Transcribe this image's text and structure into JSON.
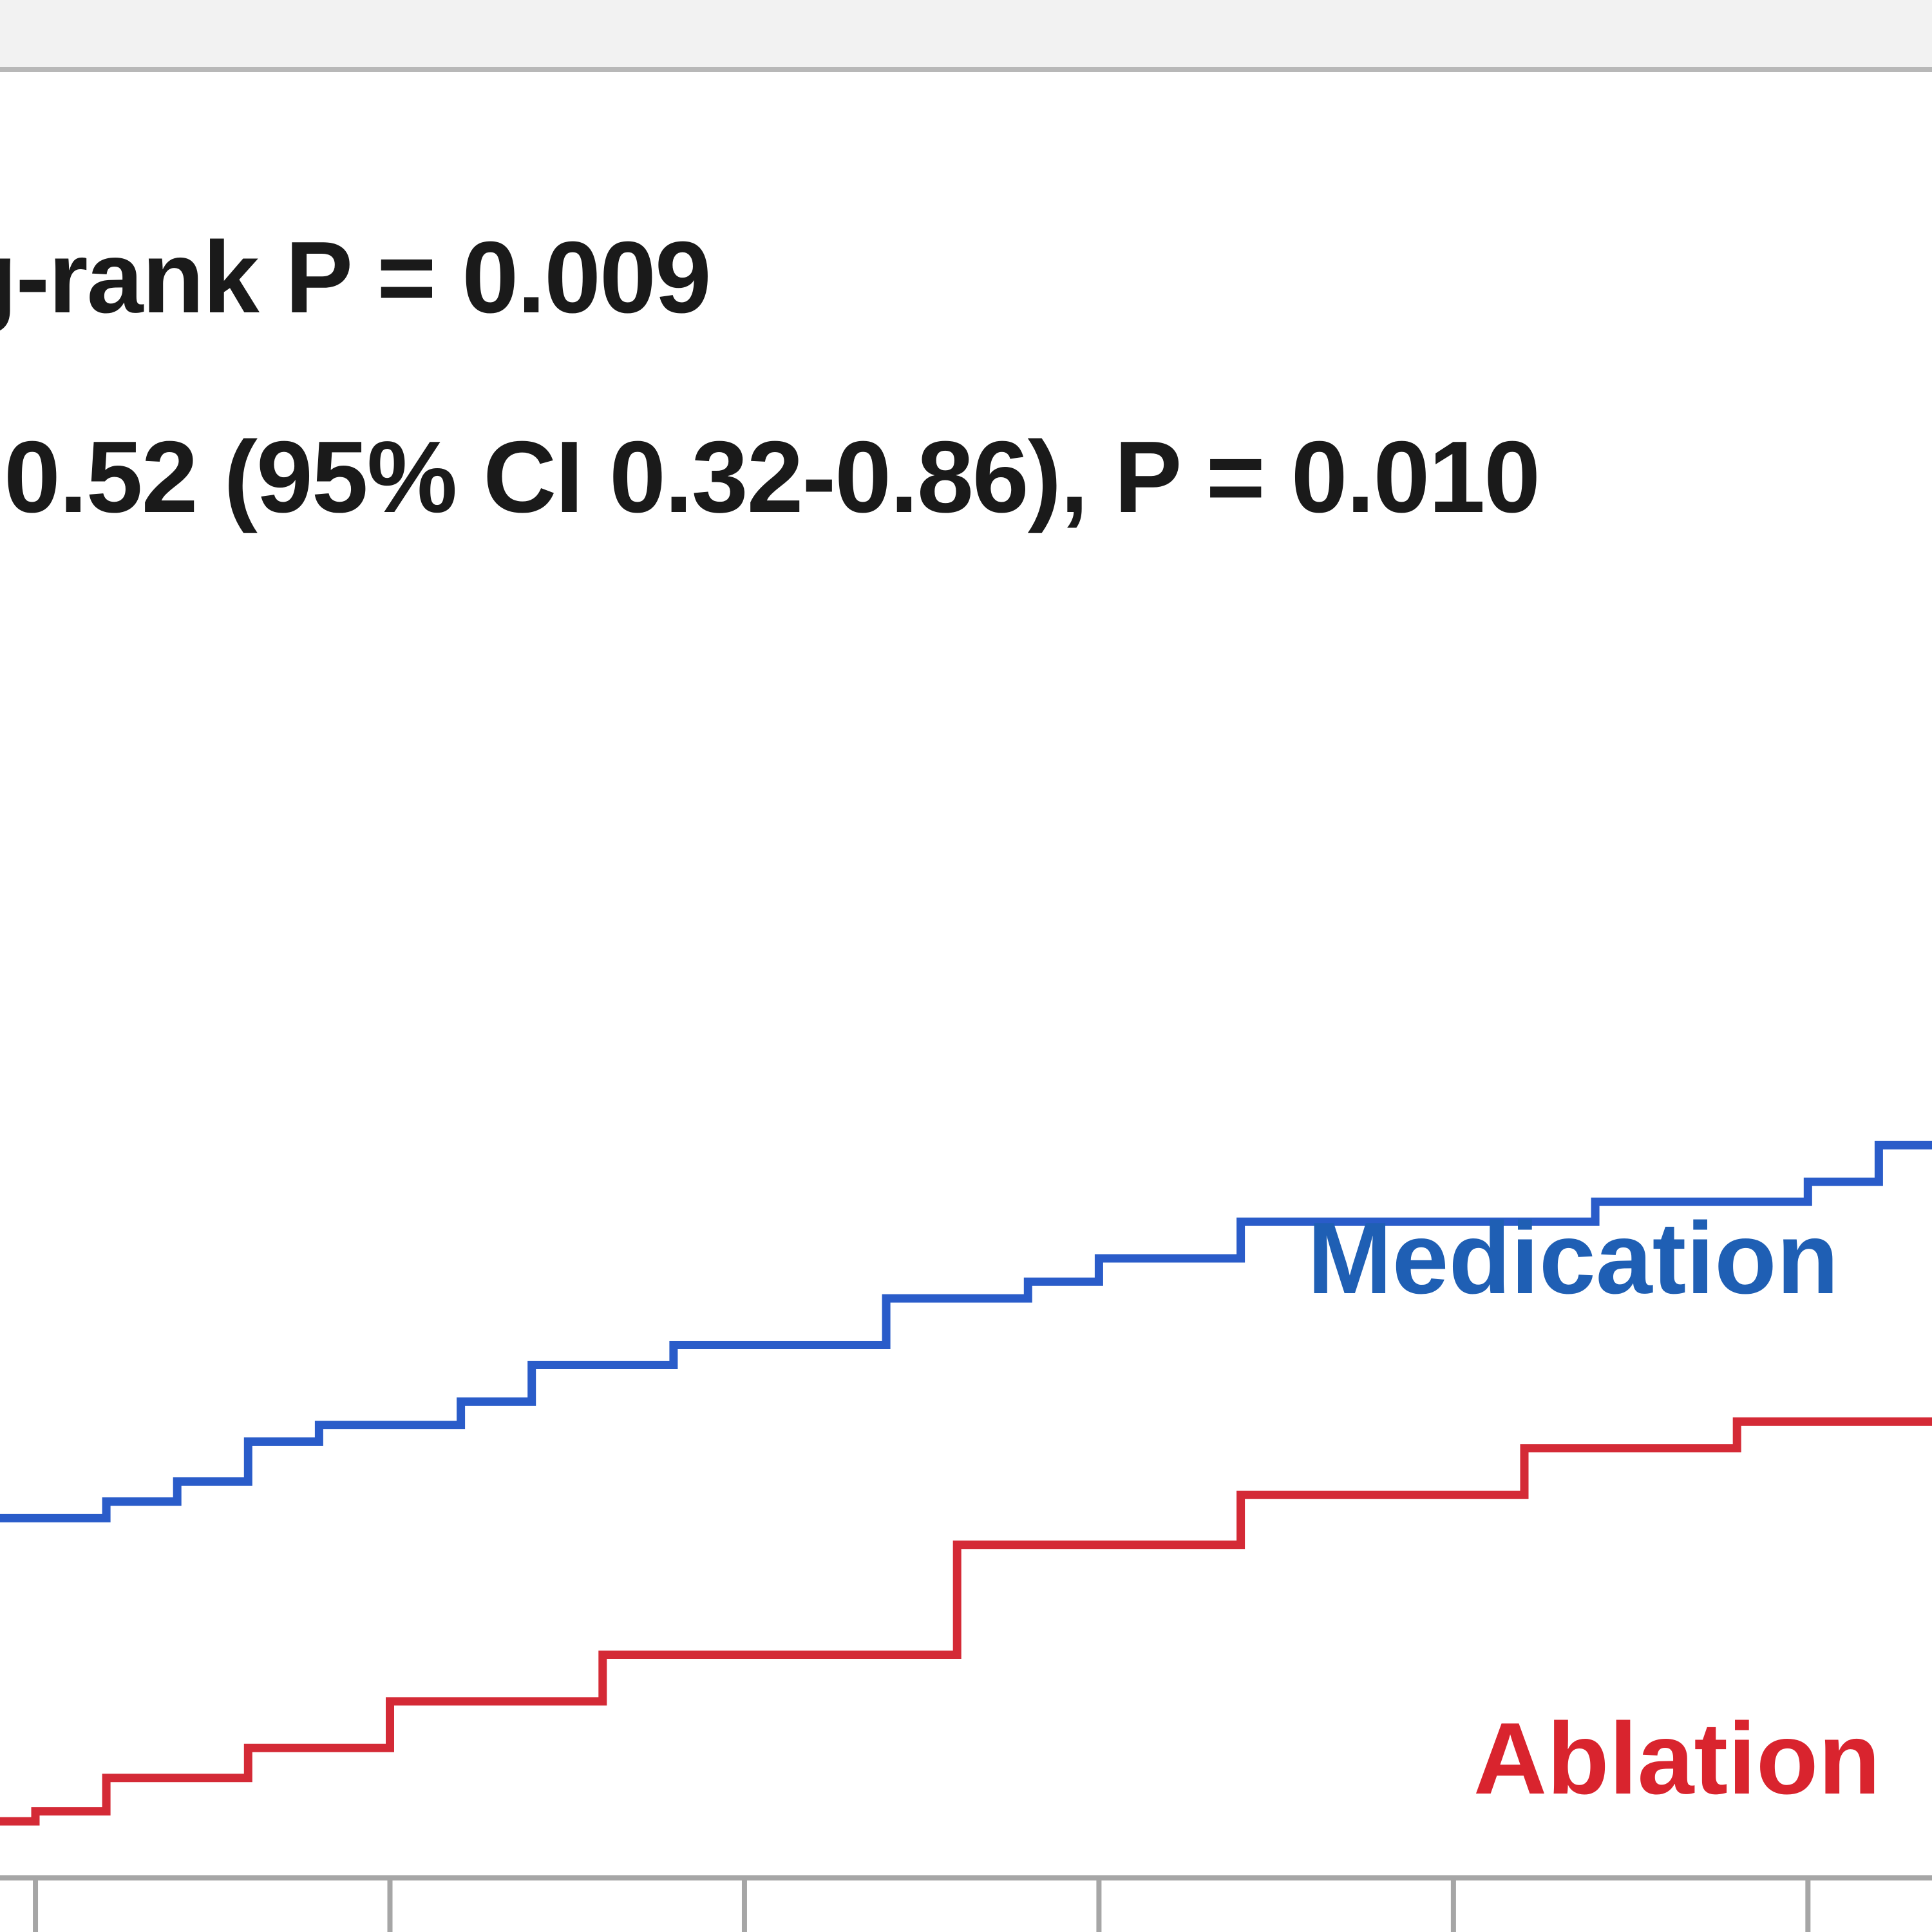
{
  "chart_data": {
    "type": "line",
    "step": true,
    "annotations": [
      "g-rank P = 0.009",
      "0.52 (95% CI 0.32-0.86), P = 0.010"
    ],
    "xlim": [
      0,
      5.45
    ],
    "ylim": [
      0,
      1
    ],
    "grid": false,
    "series": [
      {
        "name": "Medication",
        "color": "#2a5cc9",
        "label_color": "#1f5fb4",
        "points": [
          [
            0.0,
            0.216
          ],
          [
            0.3,
            0.216
          ],
          [
            0.3,
            0.226
          ],
          [
            0.5,
            0.226
          ],
          [
            0.5,
            0.238
          ],
          [
            0.7,
            0.238
          ],
          [
            0.7,
            0.262
          ],
          [
            0.9,
            0.262
          ],
          [
            0.9,
            0.272
          ],
          [
            1.3,
            0.272
          ],
          [
            1.3,
            0.286
          ],
          [
            1.5,
            0.286
          ],
          [
            1.5,
            0.308
          ],
          [
            1.9,
            0.308
          ],
          [
            1.9,
            0.32
          ],
          [
            2.5,
            0.32
          ],
          [
            2.5,
            0.348
          ],
          [
            2.9,
            0.348
          ],
          [
            2.9,
            0.358
          ],
          [
            3.1,
            0.358
          ],
          [
            3.1,
            0.372
          ],
          [
            3.5,
            0.372
          ],
          [
            3.5,
            0.394
          ],
          [
            4.5,
            0.394
          ],
          [
            4.5,
            0.406
          ],
          [
            5.1,
            0.406
          ],
          [
            5.1,
            0.418
          ],
          [
            5.3,
            0.418
          ],
          [
            5.3,
            0.44
          ],
          [
            5.45,
            0.44
          ]
        ]
      },
      {
        "name": "Ablation",
        "color": "#d42a36",
        "label_color": "#d9242e",
        "points": [
          [
            0.0,
            0.034
          ],
          [
            0.1,
            0.034
          ],
          [
            0.1,
            0.04
          ],
          [
            0.3,
            0.04
          ],
          [
            0.3,
            0.06
          ],
          [
            0.7,
            0.06
          ],
          [
            0.7,
            0.078
          ],
          [
            1.1,
            0.078
          ],
          [
            1.1,
            0.106
          ],
          [
            1.7,
            0.106
          ],
          [
            1.7,
            0.134
          ],
          [
            2.7,
            0.134
          ],
          [
            2.7,
            0.2
          ],
          [
            3.5,
            0.2
          ],
          [
            3.5,
            0.23
          ],
          [
            4.3,
            0.23
          ],
          [
            4.3,
            0.258
          ],
          [
            4.9,
            0.258
          ],
          [
            4.9,
            0.274
          ],
          [
            5.45,
            0.274
          ]
        ]
      }
    ],
    "x_ticks": [
      0.1,
      1.1,
      2.1,
      3.1,
      4.1,
      5.1
    ]
  }
}
